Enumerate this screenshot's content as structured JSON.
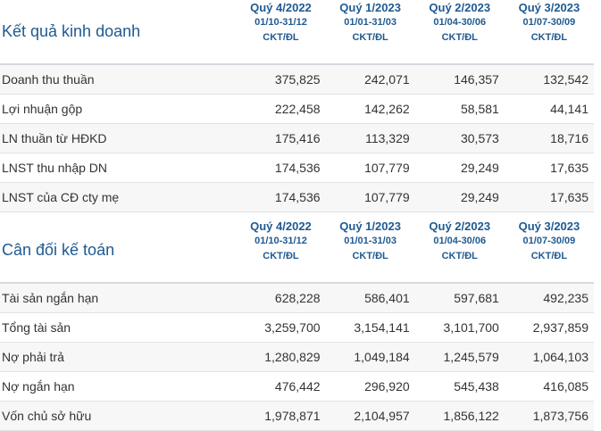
{
  "business_results": {
    "title": "Kết quả kinh doanh",
    "periods": [
      {
        "quarter": "Quý 4/2022",
        "dates": "01/10-31/12",
        "unit": "CKT/ĐL"
      },
      {
        "quarter": "Quý 1/2023",
        "dates": "01/01-31/03",
        "unit": "CKT/ĐL"
      },
      {
        "quarter": "Quý 2/2023",
        "dates": "01/04-30/06",
        "unit": "CKT/ĐL"
      },
      {
        "quarter": "Quý 3/2023",
        "dates": "01/07-30/09",
        "unit": "CKT/ĐL"
      }
    ],
    "rows": [
      {
        "label": "Doanh thu thuần",
        "values": [
          "375,825",
          "242,071",
          "146,357",
          "132,542"
        ]
      },
      {
        "label": "Lợi nhuận gộp",
        "values": [
          "222,458",
          "142,262",
          "58,581",
          "44,141"
        ]
      },
      {
        "label": "LN thuần từ HĐKD",
        "values": [
          "175,416",
          "113,329",
          "30,573",
          "18,716"
        ]
      },
      {
        "label": "LNST thu nhập DN",
        "values": [
          "174,536",
          "107,779",
          "29,249",
          "17,635"
        ]
      },
      {
        "label": "LNST của CĐ cty mẹ",
        "values": [
          "174,536",
          "107,779",
          "29,249",
          "17,635"
        ]
      }
    ]
  },
  "balance_sheet": {
    "title": "Cân đối kế toán",
    "periods": [
      {
        "quarter": "Quý 4/2022",
        "dates": "01/10-31/12",
        "unit": "CKT/ĐL"
      },
      {
        "quarter": "Quý 1/2023",
        "dates": "01/01-31/03",
        "unit": "CKT/ĐL"
      },
      {
        "quarter": "Quý 2/2023",
        "dates": "01/04-30/06",
        "unit": "CKT/ĐL"
      },
      {
        "quarter": "Quý 3/2023",
        "dates": "01/07-30/09",
        "unit": "CKT/ĐL"
      }
    ],
    "rows": [
      {
        "label": "Tài sản ngắn hạn",
        "values": [
          "628,228",
          "586,401",
          "597,681",
          "492,235"
        ]
      },
      {
        "label": "Tổng tài sản",
        "values": [
          "3,259,700",
          "3,154,141",
          "3,101,700",
          "2,937,859"
        ]
      },
      {
        "label": "Nợ phải trả",
        "values": [
          "1,280,829",
          "1,049,184",
          "1,245,579",
          "1,064,103"
        ]
      },
      {
        "label": "Nợ ngắn hạn",
        "values": [
          "476,442",
          "296,920",
          "545,438",
          "416,085"
        ]
      },
      {
        "label": "Vốn chủ sở hữu",
        "values": [
          "1,978,871",
          "2,104,957",
          "1,856,122",
          "1,873,756"
        ]
      }
    ]
  }
}
